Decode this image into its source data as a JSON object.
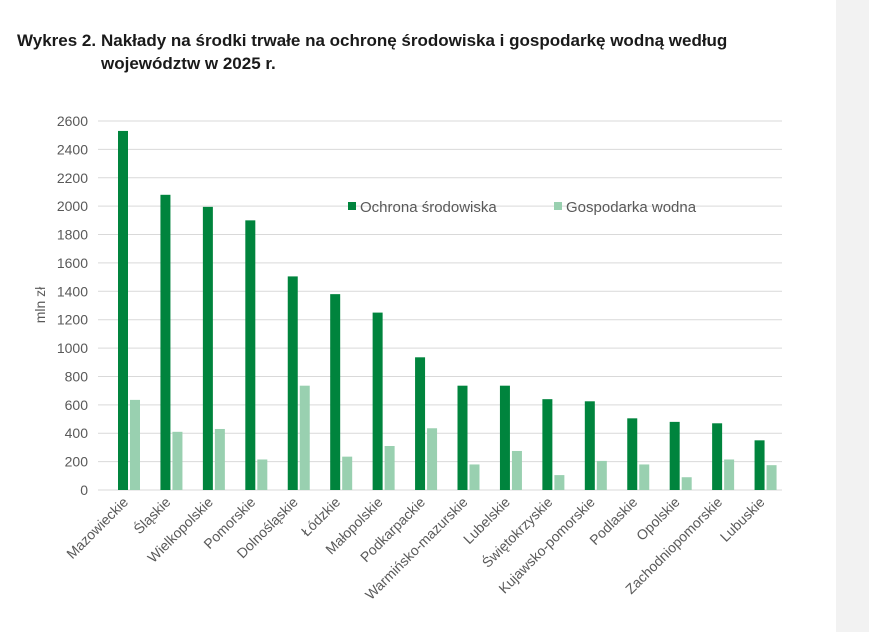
{
  "figure": {
    "label": "Wykres 2.",
    "title_line1": "Nakłady na środki trwałe na ochronę środowiska i gospodarkę wodną według",
    "title_line2": "województw w 2025 r."
  },
  "chart_data": {
    "type": "bar",
    "title": "Nakłady na środki trwałe na ochronę środowiska i gospodarkę wodną według województw w 2025 r.",
    "ylabel": "mln zł",
    "xlabel": "",
    "ylim": [
      0,
      2600
    ],
    "yticks": [
      0,
      200,
      400,
      600,
      800,
      1000,
      1200,
      1400,
      1600,
      1800,
      2000,
      2200,
      2400,
      2600
    ],
    "grid": true,
    "legend_position": "top-right",
    "categories": [
      "Mazowieckie",
      "Śląskie",
      "Wielkopolskie",
      "Pomorskie",
      "Dolnośląskie",
      "Łódzkie",
      "Małopolskie",
      "Podkarpackie",
      "Warmińsko-mazurskie",
      "Lubelskie",
      "Świętokrzyskie",
      "Kujawsko-pomorskie",
      "Podlaskie",
      "Opolskie",
      "Zachodniopomorskie",
      "Lubuskie"
    ],
    "series": [
      {
        "name": "Ochrona środowiska",
        "color": "#00843d",
        "values": [
          2530,
          2080,
          1995,
          1900,
          1505,
          1380,
          1250,
          935,
          735,
          735,
          640,
          625,
          505,
          480,
          470,
          350
        ]
      },
      {
        "name": "Gospodarka wodna",
        "color": "#99d0b0",
        "values": [
          635,
          410,
          430,
          215,
          735,
          235,
          310,
          435,
          180,
          275,
          105,
          205,
          180,
          90,
          215,
          175
        ]
      }
    ]
  },
  "colors": {
    "grid": "#d9d9d9",
    "axis_text": "#595959",
    "side_panel": "#f2f2f2"
  }
}
